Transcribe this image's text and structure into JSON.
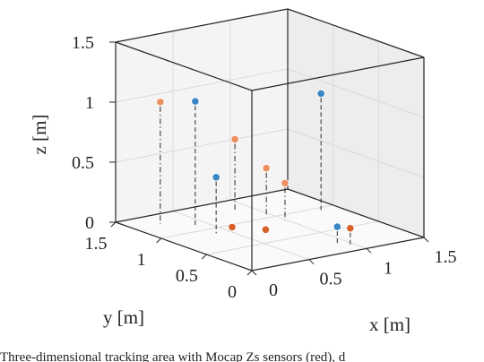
{
  "chart_data": {
    "type": "scatter",
    "projection": "3d",
    "xlabel": "x [m]",
    "ylabel": "y [m]",
    "zlabel": "z [m]",
    "xlim": [
      0,
      1.5
    ],
    "ylim": [
      0,
      1.5
    ],
    "zlim": [
      0,
      1.5
    ],
    "x_ticks": [
      "0",
      "0.5",
      "1",
      "1.5"
    ],
    "y_ticks": [
      "0",
      "0.5",
      "1",
      "1.5"
    ],
    "z_ticks": [
      "0",
      "0.5",
      "1",
      "1.5"
    ],
    "grid": true,
    "colors": {
      "blue": "#3a86c4",
      "orange": "#d8602a",
      "salmon": "#ee8f62"
    },
    "points": [
      {
        "x": 0.35,
        "y": 1.45,
        "z": 0.95,
        "color": "salmon",
        "stem": "dashdot"
      },
      {
        "x": 0.52,
        "y": 1.28,
        "z": 0.97,
        "color": "blue",
        "stem": "dashed"
      },
      {
        "x": 0.52,
        "y": 1.05,
        "z": 0.4,
        "color": "blue",
        "stem": "dashed"
      },
      {
        "x": 0.58,
        "y": 0.95,
        "z": 0.0,
        "color": "orange",
        "stem": "none"
      },
      {
        "x": 0.73,
        "y": 0.77,
        "z": 0.0,
        "color": "orange",
        "stem": "none"
      },
      {
        "x": 1.0,
        "y": 1.45,
        "z": 0.52,
        "color": "salmon",
        "stem": "dashdot"
      },
      {
        "x": 1.1,
        "y": 1.23,
        "z": 0.32,
        "color": "salmon",
        "stem": "dashdot"
      },
      {
        "x": 1.12,
        "y": 1.05,
        "z": 0.24,
        "color": "salmon",
        "stem": "dashdot"
      },
      {
        "x": 1.45,
        "y": 1.07,
        "z": 0.92,
        "color": "blue",
        "stem": "dashed"
      },
      {
        "x": 1.18,
        "y": 0.55,
        "z": 0.0,
        "color": "blue",
        "stem": "dashed"
      },
      {
        "x": 1.23,
        "y": 0.47,
        "z": 0.0,
        "color": "orange",
        "stem": "dashed"
      }
    ]
  },
  "caption": "Three-dimensional tracking area with Mocap Zs sensors (red), d"
}
